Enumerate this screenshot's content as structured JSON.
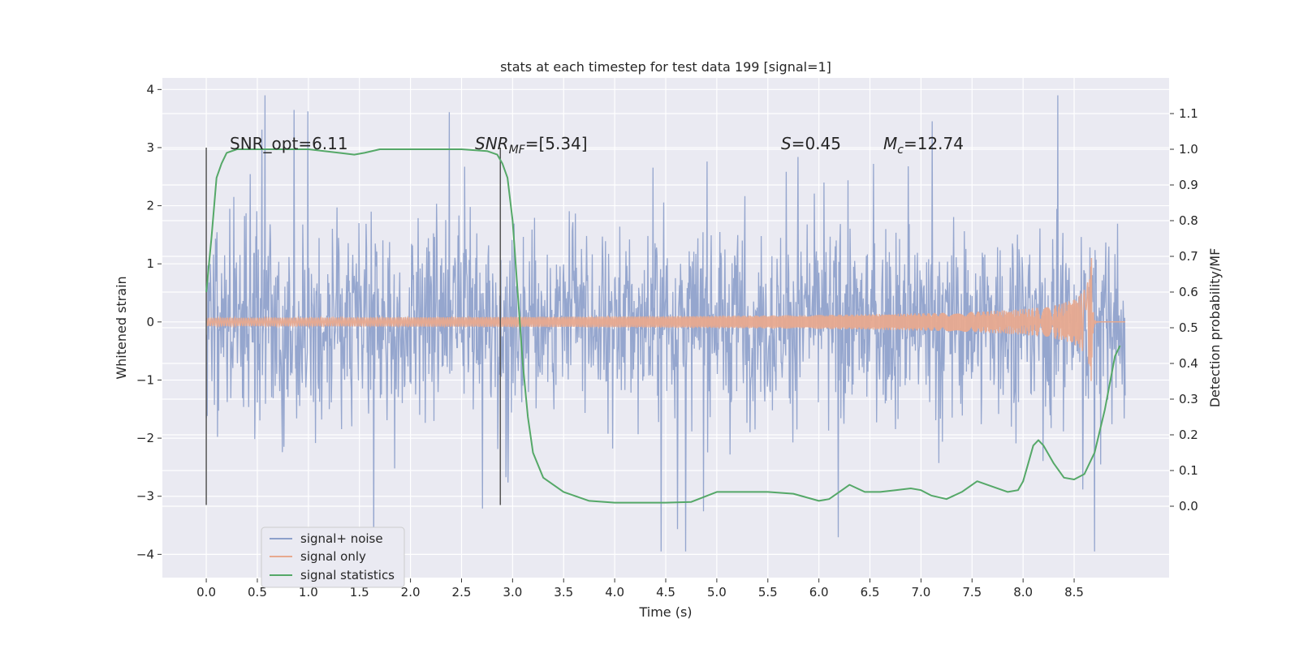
{
  "chart_data": {
    "type": "line",
    "title": "stats at each timestep for test data 199 [signal=1]",
    "xlabel": "Time (s)",
    "ylabel_left": "Whitened strain",
    "ylabel_right": "Detection probability/MF",
    "xlim": [
      -0.43,
      9.43
    ],
    "ylim_left": [
      -4.4,
      4.2
    ],
    "ylim_right": [
      -0.2,
      1.2
    ],
    "x_ticks": [
      "0.0",
      "0.5",
      "1.0",
      "1.5",
      "2.0",
      "2.5",
      "3.0",
      "3.5",
      "4.0",
      "4.5",
      "5.0",
      "5.5",
      "6.0",
      "6.5",
      "7.0",
      "7.5",
      "8.0",
      "8.5"
    ],
    "y_left_ticks": [
      "−4",
      "−3",
      "−2",
      "−1",
      "0",
      "1",
      "2",
      "3",
      "4"
    ],
    "y_right_ticks": [
      "0.0",
      "0.1",
      "0.2",
      "0.3",
      "0.4",
      "0.5",
      "0.6",
      "0.7",
      "0.8",
      "0.9",
      "1.0",
      "1.1"
    ],
    "grid": true,
    "legend_position": "bottom-left",
    "colors": {
      "background": "#eaeaf2",
      "grid": "#ffffff",
      "noise": "#8da0cb",
      "signal": "#e7a98f",
      "stats": "#55a868",
      "vline": "#555555"
    },
    "series": [
      {
        "name": "signal+ noise",
        "description_value_range": [
          -4.0,
          4.0
        ],
        "duration_s": 9.0
      },
      {
        "name": "signal only",
        "chirp_peak_time_s": 8.67,
        "chirp_peak_amplitude": 1.1
      },
      {
        "name": "signal statistics",
        "x": [
          0.0,
          0.05,
          0.1,
          0.15,
          0.2,
          0.3,
          0.5,
          1.0,
          1.3,
          1.45,
          1.55,
          1.7,
          2.0,
          2.5,
          2.75,
          2.85,
          2.9,
          2.95,
          3.0,
          3.05,
          3.1,
          3.15,
          3.2,
          3.3,
          3.5,
          3.75,
          4.0,
          4.5,
          4.75,
          5.0,
          5.5,
          5.75,
          6.0,
          6.1,
          6.2,
          6.3,
          6.45,
          6.6,
          6.75,
          6.9,
          7.0,
          7.1,
          7.25,
          7.4,
          7.55,
          7.7,
          7.85,
          7.95,
          8.0,
          8.05,
          8.1,
          8.15,
          8.2,
          8.3,
          8.4,
          8.5,
          8.6,
          8.65,
          8.7,
          8.8,
          8.9,
          8.95
        ],
        "y": [
          0.6,
          0.75,
          0.92,
          0.96,
          0.99,
          1.0,
          1.0,
          1.0,
          0.99,
          0.985,
          0.99,
          1.0,
          1.0,
          1.0,
          0.995,
          0.985,
          0.96,
          0.92,
          0.8,
          0.6,
          0.4,
          0.25,
          0.15,
          0.08,
          0.04,
          0.015,
          0.01,
          0.01,
          0.012,
          0.04,
          0.04,
          0.035,
          0.015,
          0.02,
          0.04,
          0.06,
          0.04,
          0.04,
          0.045,
          0.05,
          0.045,
          0.03,
          0.02,
          0.04,
          0.07,
          0.055,
          0.04,
          0.045,
          0.07,
          0.12,
          0.17,
          0.185,
          0.17,
          0.12,
          0.08,
          0.075,
          0.09,
          0.12,
          0.15,
          0.27,
          0.42,
          0.45
        ]
      }
    ],
    "vertical_lines_x": [
      0.0,
      2.88
    ],
    "annotations": {
      "snr_opt": "SNR_opt=6.11",
      "snr_mf_base": "SNR",
      "snr_mf_sub": "MF",
      "snr_mf_value": "=[5.34]",
      "s_base": "S",
      "s_value": "=0.45",
      "mc_base": "M",
      "mc_sub": "c",
      "mc_value": "=12.74"
    }
  }
}
